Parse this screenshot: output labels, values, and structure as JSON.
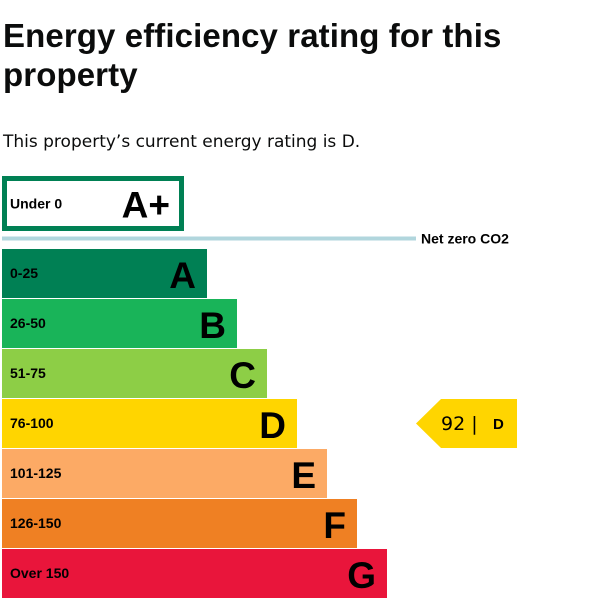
{
  "page": {
    "title": "Energy efficiency rating for this property",
    "intro": "This property’s current energy rating is D."
  },
  "chart_data": {
    "type": "bar",
    "title": "",
    "categories": [
      "A+",
      "A",
      "B",
      "C",
      "D",
      "E",
      "F",
      "G"
    ],
    "bands": [
      {
        "letter": "A+",
        "range": "Under 0",
        "color": "#ffffff",
        "border": "#008054"
      },
      {
        "letter": "A",
        "range": "0-25",
        "color": "#008054"
      },
      {
        "letter": "B",
        "range": "26-50",
        "color": "#19b459"
      },
      {
        "letter": "C",
        "range": "51-75",
        "color": "#8dce46"
      },
      {
        "letter": "D",
        "range": "76-100",
        "color": "#ffd500"
      },
      {
        "letter": "E",
        "range": "101-125",
        "color": "#fcaa65"
      },
      {
        "letter": "F",
        "range": "126-150",
        "color": "#ef8023"
      },
      {
        "letter": "G",
        "range": "Over 150",
        "color": "#e9153b"
      }
    ],
    "net_zero": {
      "label": "Net zero CO2",
      "color": "#b1d6dd"
    },
    "current": {
      "score": 92,
      "score_text": "92 |",
      "letter": "D",
      "color": "#ffd500"
    }
  }
}
